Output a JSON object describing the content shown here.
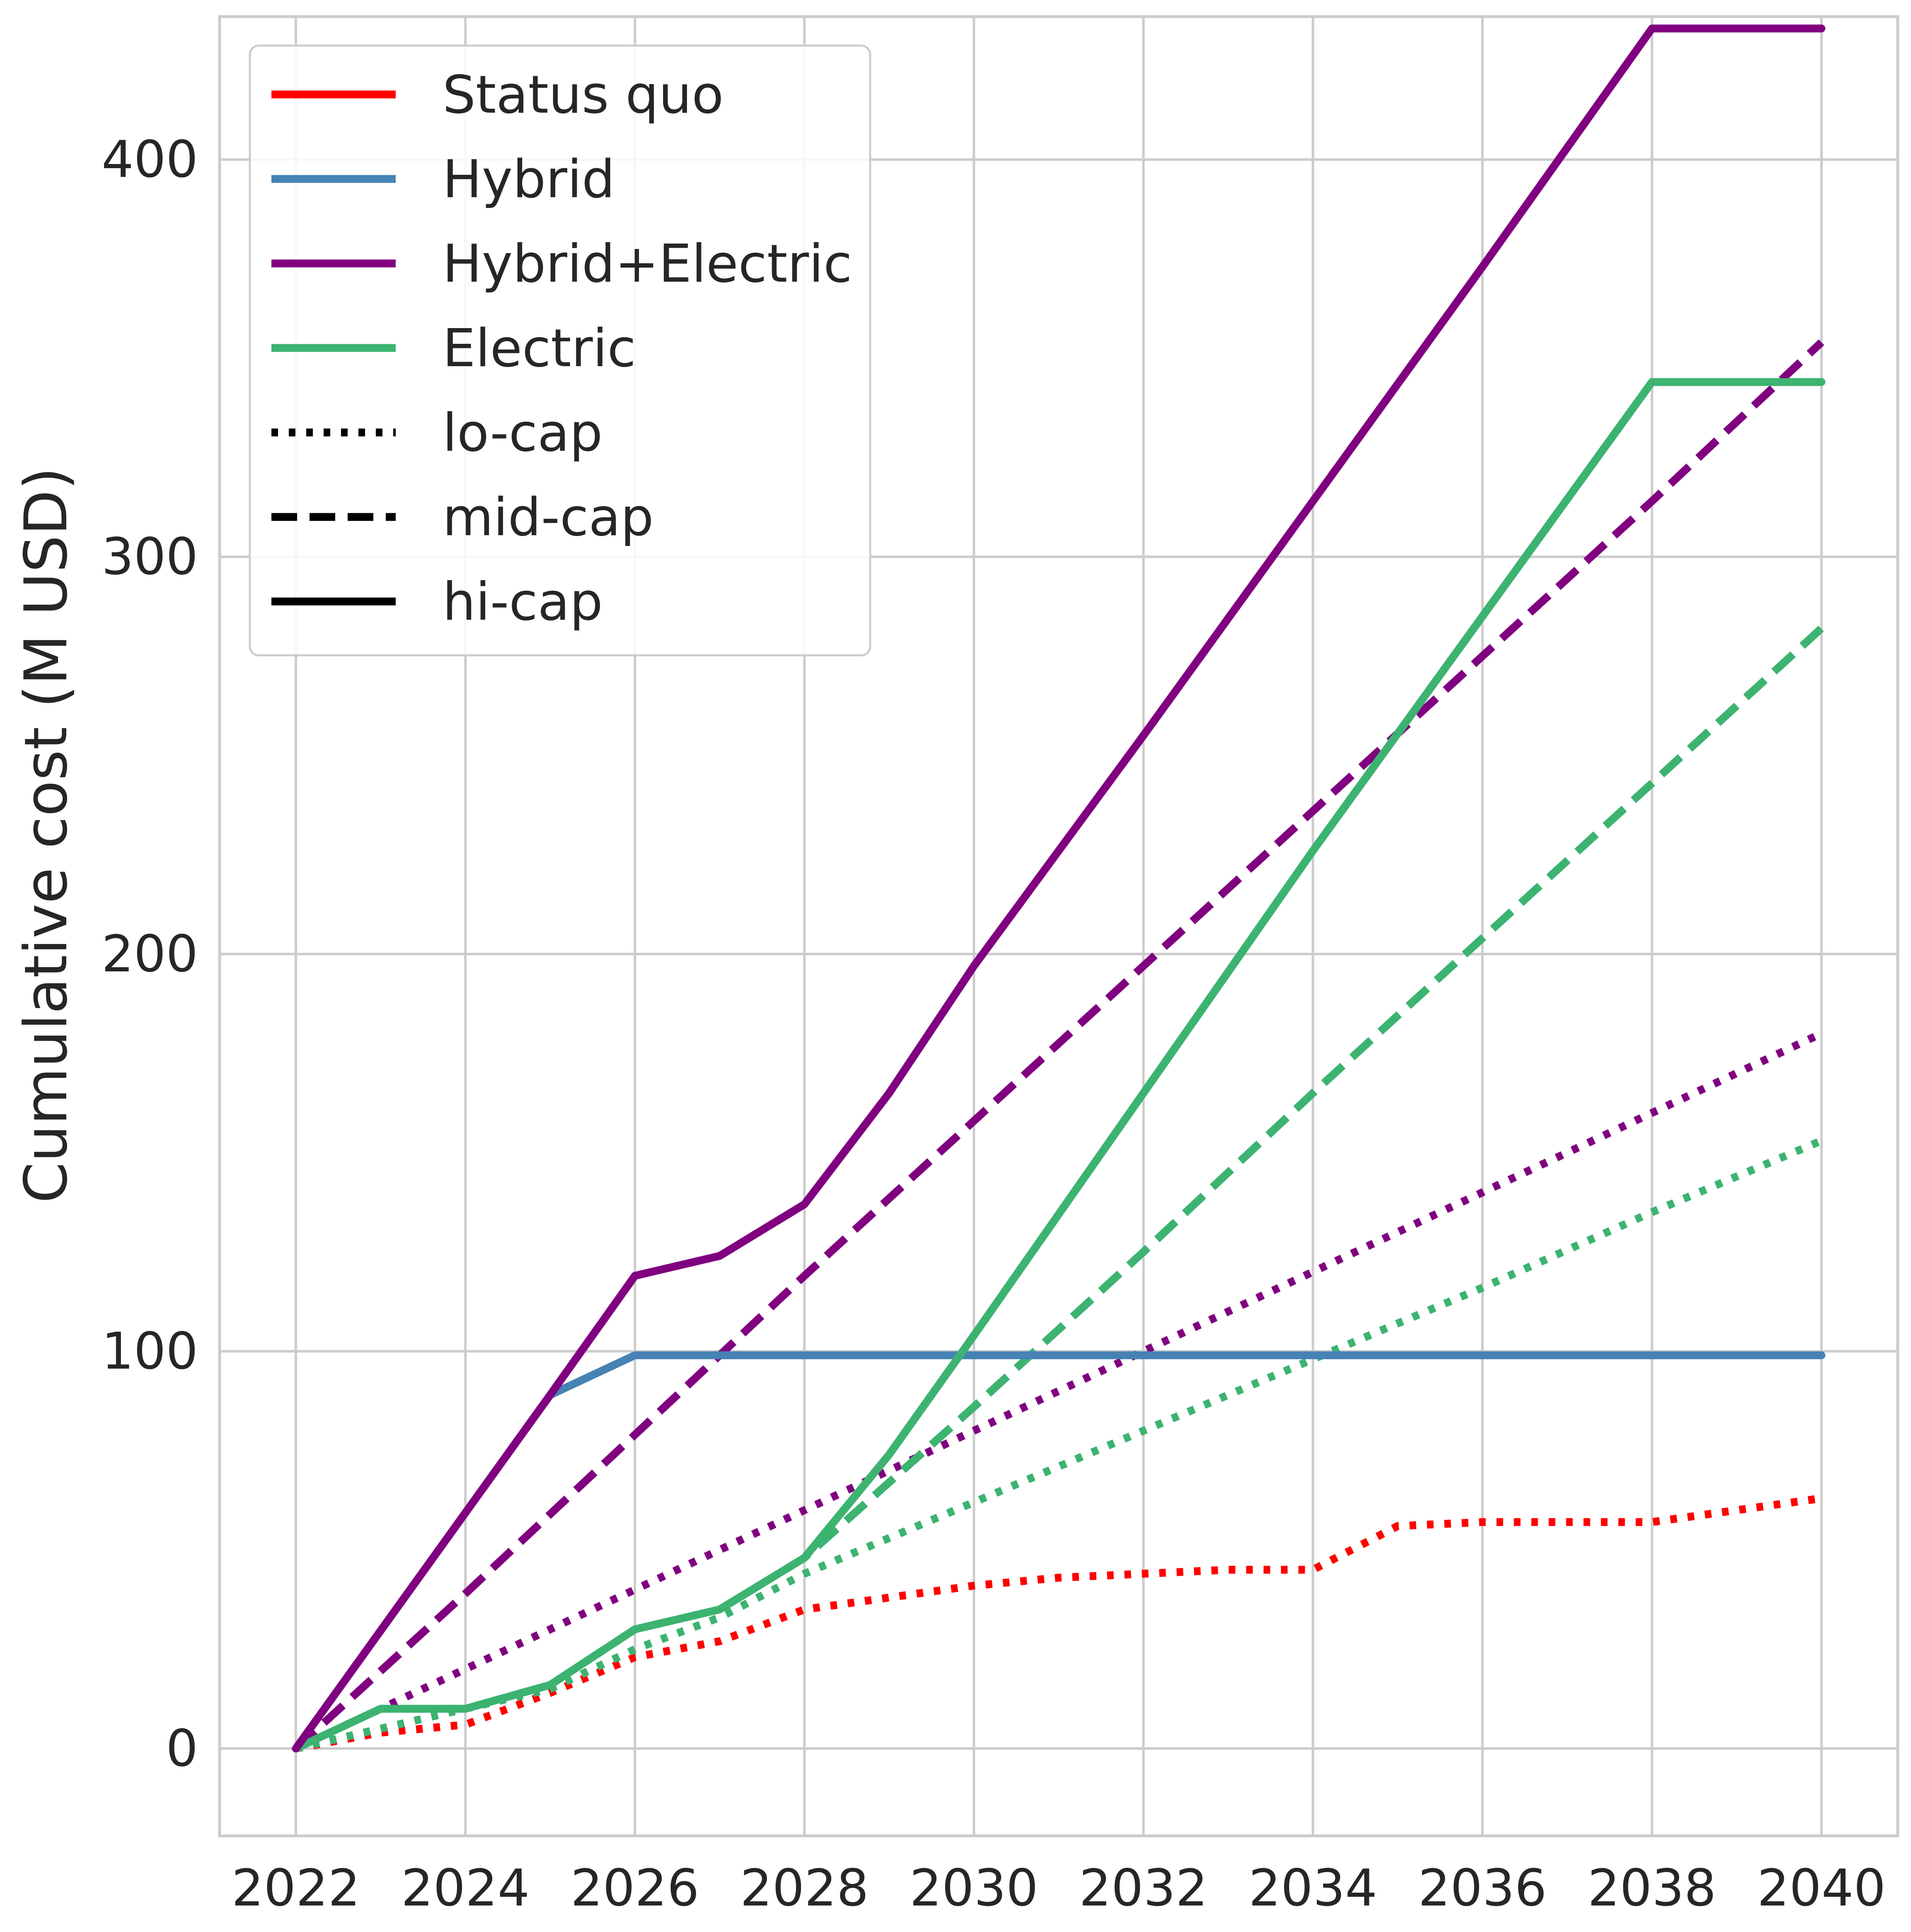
{
  "chart_data": {
    "type": "line",
    "title": "",
    "xlabel": "",
    "ylabel": "Cumulative cost (M USD)",
    "x_ticks": [
      2022,
      2024,
      2026,
      2028,
      2030,
      2032,
      2034,
      2036,
      2038,
      2040
    ],
    "y_ticks": [
      0,
      100,
      200,
      300,
      400
    ],
    "xlim": [
      2021.1,
      2040.9
    ],
    "ylim": [
      -22,
      436
    ],
    "grid": true,
    "legend_position": "top-left",
    "legend": [
      {
        "label": "Status quo",
        "color": "#ff0000",
        "style": "solid"
      },
      {
        "label": "Hybrid",
        "color": "#4682b4",
        "style": "solid"
      },
      {
        "label": "Hybrid+Electric",
        "color": "#800080",
        "style": "solid"
      },
      {
        "label": "Electric",
        "color": "#3cb371",
        "style": "solid"
      },
      {
        "label": "lo-cap",
        "color": "#000000",
        "style": "dotted"
      },
      {
        "label": "mid-cap",
        "color": "#000000",
        "style": "dashed"
      },
      {
        "label": "hi-cap",
        "color": "#000000",
        "style": "solid"
      }
    ],
    "series": [
      {
        "scenario": "Status quo",
        "capacity": "lo-cap",
        "color": "#ff0000",
        "style": "dotted",
        "x": [
          2022,
          2023,
          2024,
          2025,
          2026,
          2027,
          2028,
          2029,
          2030,
          2031,
          2032,
          2033,
          2034,
          2035,
          2036,
          2037,
          2038,
          2039,
          2040
        ],
        "y": [
          0,
          4,
          6,
          14,
          23,
          27,
          35,
          38,
          41,
          43,
          44,
          45,
          45,
          56,
          57,
          57,
          57,
          60,
          63
        ]
      },
      {
        "scenario": "Electric",
        "capacity": "lo-cap",
        "color": "#3cb371",
        "style": "dotted",
        "x": [
          2022,
          2024,
          2025,
          2026,
          2027,
          2028,
          2030,
          2032,
          2034,
          2036,
          2038,
          2040
        ],
        "y": [
          0,
          10,
          15,
          25,
          33,
          44,
          62,
          80,
          98,
          116,
          135,
          153
        ]
      },
      {
        "scenario": "Hybrid+Electric",
        "capacity": "lo-cap",
        "color": "#800080",
        "style": "dotted",
        "x": [
          2022,
          2024,
          2026,
          2028,
          2030,
          2032,
          2034,
          2036,
          2038,
          2040
        ],
        "y": [
          0,
          20,
          40,
          60,
          80,
          100,
          120,
          140,
          160,
          180
        ]
      },
      {
        "scenario": "Electric",
        "capacity": "mid-cap",
        "color": "#3cb371",
        "style": "dashed",
        "x": [
          2022,
          2023,
          2024,
          2025,
          2026,
          2027,
          2028,
          2030,
          2032,
          2034,
          2036,
          2038,
          2040
        ],
        "y": [
          0,
          10,
          10,
          16,
          30,
          35,
          48,
          86,
          125,
          165,
          204,
          243,
          282
        ]
      },
      {
        "scenario": "Hybrid+Electric",
        "capacity": "mid-cap",
        "color": "#800080",
        "style": "dashed",
        "x": [
          2022,
          2024,
          2026,
          2028,
          2030,
          2032,
          2034,
          2036,
          2038,
          2040
        ],
        "y": [
          0,
          39,
          79,
          119,
          158,
          197,
          236,
          275,
          314,
          354
        ]
      },
      {
        "scenario": "Hybrid",
        "capacity": "hi-cap",
        "color": "#4682b4",
        "style": "solid",
        "x": [
          2022,
          2025,
          2026,
          2027,
          2028,
          2030,
          2032,
          2034,
          2036,
          2038,
          2040
        ],
        "y": [
          0,
          89,
          99,
          99,
          99,
          99,
          99,
          99,
          99,
          99,
          99
        ]
      },
      {
        "scenario": "Electric",
        "capacity": "hi-cap",
        "color": "#3cb371",
        "style": "solid",
        "x": [
          2022,
          2023,
          2024,
          2025,
          2026,
          2027,
          2028,
          2029,
          2030,
          2032,
          2034,
          2036,
          2038,
          2040
        ],
        "y": [
          0,
          10,
          10,
          16,
          30,
          35,
          48,
          74,
          104,
          165,
          226,
          285,
          344,
          344
        ]
      },
      {
        "scenario": "Hybrid+Electric",
        "capacity": "hi-cap",
        "color": "#800080",
        "style": "solid",
        "x": [
          2022,
          2025,
          2026,
          2027,
          2028,
          2029,
          2030,
          2032,
          2034,
          2036,
          2038,
          2040
        ],
        "y": [
          0,
          89,
          119,
          124,
          137,
          165,
          197,
          255,
          314,
          373,
          433,
          433
        ]
      }
    ]
  }
}
